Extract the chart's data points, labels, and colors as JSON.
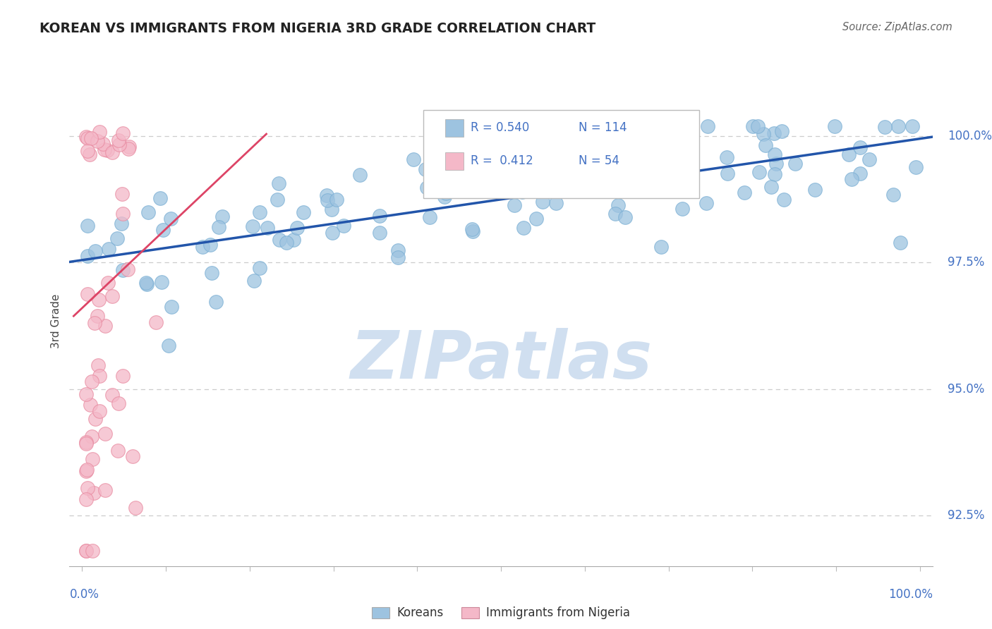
{
  "title": "KOREAN VS IMMIGRANTS FROM NIGERIA 3RD GRADE CORRELATION CHART",
  "source": "Source: ZipAtlas.com",
  "ylabel": "3rd Grade",
  "blue_color": "#9dc3e0",
  "blue_edge": "#7bafd4",
  "pink_color": "#f4b8c8",
  "pink_edge": "#e88aa0",
  "trendline_blue": "#2255aa",
  "trendline_pink": "#dd4466",
  "legend_blue_text": "R = 0.540   N = 114",
  "legend_pink_text": "R =  0.412   N = 54",
  "ytick_labels": [
    "92.5%",
    "95.0%",
    "97.5%",
    "100.0%"
  ],
  "ytick_vals": [
    0.925,
    0.95,
    0.975,
    1.0
  ],
  "ylim": [
    0.915,
    1.012
  ],
  "xlim": [
    -0.015,
    1.015
  ],
  "watermark_color": "#d0dff0",
  "grid_color": "#cccccc",
  "axis_color": "#aaaaaa",
  "right_label_color": "#4472c4",
  "source_color": "#666666",
  "title_color": "#222222"
}
